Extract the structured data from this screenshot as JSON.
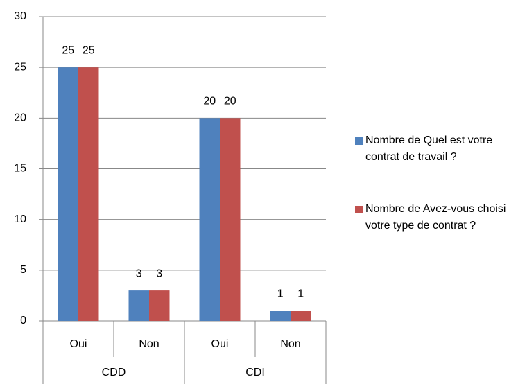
{
  "chart_data": {
    "type": "bar",
    "categories": [
      "Oui",
      "Non",
      "Oui",
      "Non"
    ],
    "category_groups": [
      "CDD",
      "CDI"
    ],
    "series": [
      {
        "name": "Nombre de Quel est votre contrat de travail ?",
        "color": "#4f81bd",
        "values": [
          25,
          3,
          20,
          1
        ]
      },
      {
        "name": "Nombre de Avez-vous choisi votre type de contrat ?",
        "color": "#c0504d",
        "values": [
          25,
          3,
          20,
          1
        ]
      }
    ],
    "ylim": [
      0,
      30
    ],
    "yticks": [
      0,
      5,
      10,
      15,
      20,
      25,
      30
    ],
    "grid": true,
    "legend": "right"
  }
}
